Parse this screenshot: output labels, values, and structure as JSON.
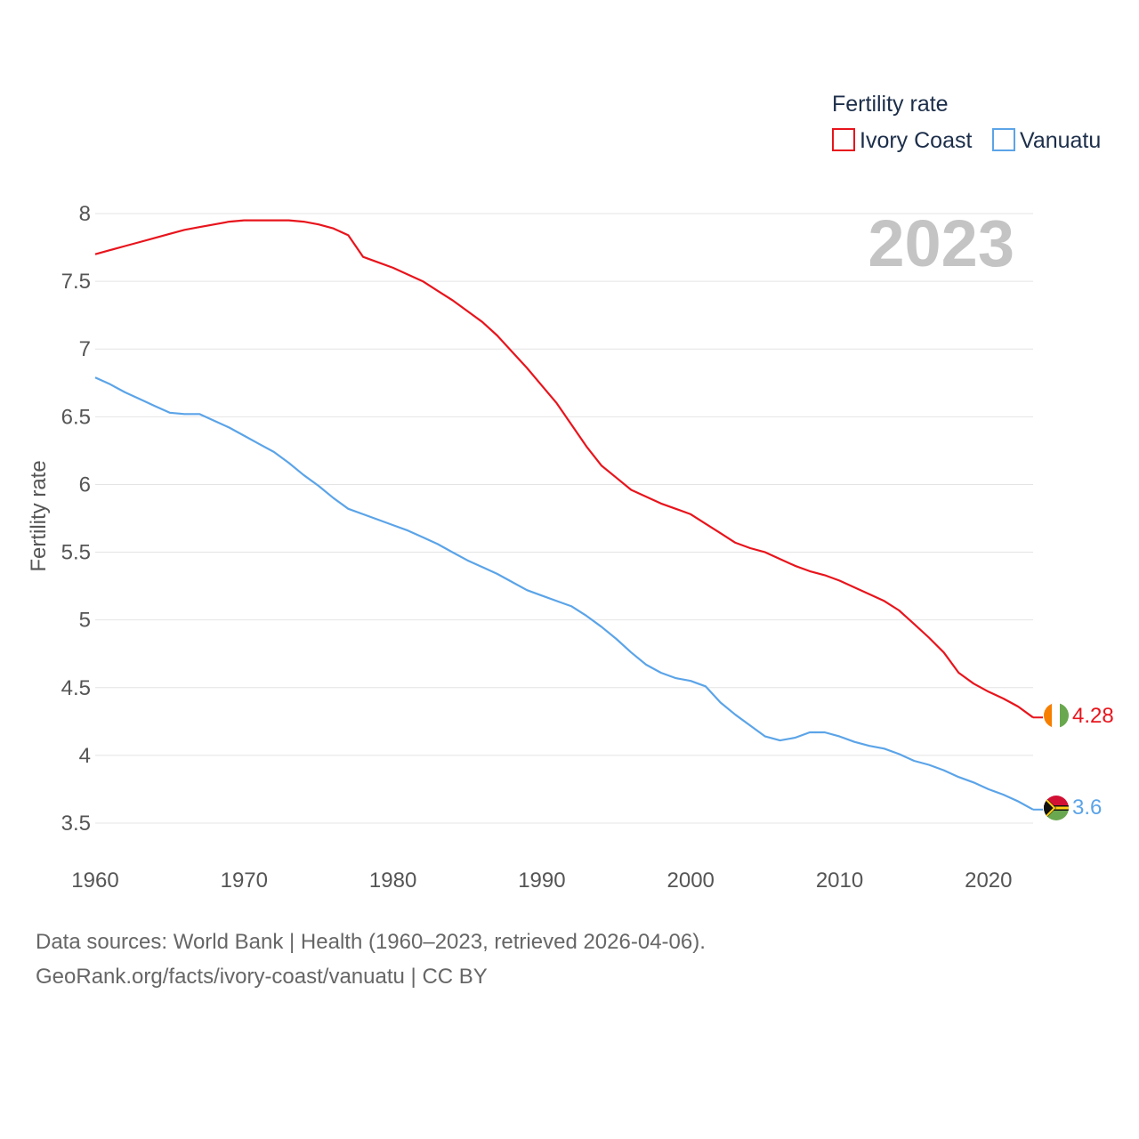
{
  "chart_data": {
    "type": "line",
    "title": "",
    "legend_title": "Fertility rate",
    "legend_position": "top-right",
    "ylabel": "Fertility rate",
    "xlabel": "",
    "xlim": [
      1960,
      2023
    ],
    "ylim": [
      3.3,
      8.05
    ],
    "x_ticks": [
      1960,
      1970,
      1980,
      1990,
      2000,
      2010,
      2020
    ],
    "y_ticks": [
      3.5,
      4,
      4.5,
      5,
      5.5,
      6,
      6.5,
      7,
      7.5,
      8
    ],
    "grid": true,
    "year_label": "2023",
    "x": [
      1960,
      1961,
      1962,
      1963,
      1964,
      1965,
      1966,
      1967,
      1968,
      1969,
      1970,
      1971,
      1972,
      1973,
      1974,
      1975,
      1976,
      1977,
      1978,
      1979,
      1980,
      1981,
      1982,
      1983,
      1984,
      1985,
      1986,
      1987,
      1988,
      1989,
      1990,
      1991,
      1992,
      1993,
      1994,
      1995,
      1996,
      1997,
      1998,
      1999,
      2000,
      2001,
      2002,
      2003,
      2004,
      2005,
      2006,
      2007,
      2008,
      2009,
      2010,
      2011,
      2012,
      2013,
      2014,
      2015,
      2016,
      2017,
      2018,
      2019,
      2020,
      2021,
      2022,
      2023
    ],
    "series": [
      {
        "name": "Ivory Coast",
        "color": "#e8141c",
        "end_label": "4.28",
        "flag_icon": "ivory-coast-flag-icon",
        "values": [
          7.7,
          7.73,
          7.76,
          7.79,
          7.82,
          7.85,
          7.88,
          7.9,
          7.92,
          7.94,
          7.95,
          7.95,
          7.95,
          7.95,
          7.94,
          7.92,
          7.89,
          7.84,
          7.68,
          7.64,
          7.6,
          7.55,
          7.5,
          7.43,
          7.36,
          7.28,
          7.2,
          7.1,
          6.98,
          6.86,
          6.73,
          6.6,
          6.44,
          6.28,
          6.14,
          6.05,
          5.96,
          5.91,
          5.86,
          5.82,
          5.78,
          5.71,
          5.64,
          5.57,
          5.53,
          5.5,
          5.45,
          5.4,
          5.36,
          5.33,
          5.29,
          5.24,
          5.19,
          5.14,
          5.07,
          4.97,
          4.87,
          4.76,
          4.61,
          4.53,
          4.47,
          4.42,
          4.36,
          4.28
        ]
      },
      {
        "name": "Vanuatu",
        "color": "#5ba4e8",
        "end_label": "3.6",
        "flag_icon": "vanuatu-flag-icon",
        "values": [
          6.79,
          6.74,
          6.68,
          6.63,
          6.58,
          6.53,
          6.52,
          6.52,
          6.47,
          6.42,
          6.36,
          6.3,
          6.24,
          6.16,
          6.07,
          5.99,
          5.9,
          5.82,
          5.78,
          5.74,
          5.7,
          5.66,
          5.61,
          5.56,
          5.5,
          5.44,
          5.39,
          5.34,
          5.28,
          5.22,
          5.18,
          5.14,
          5.1,
          5.03,
          4.95,
          4.86,
          4.76,
          4.67,
          4.61,
          4.57,
          4.55,
          4.51,
          4.39,
          4.3,
          4.22,
          4.14,
          4.11,
          4.13,
          4.17,
          4.17,
          4.14,
          4.1,
          4.07,
          4.05,
          4.01,
          3.96,
          3.93,
          3.89,
          3.84,
          3.8,
          3.75,
          3.71,
          3.66,
          3.6
        ]
      }
    ]
  },
  "footer": {
    "line1": "Data sources: World Bank | Health (1960–2023, retrieved 2026-04-06).",
    "line2": "GeoRank.org/facts/ivory-coast/vanuatu | CC BY"
  }
}
